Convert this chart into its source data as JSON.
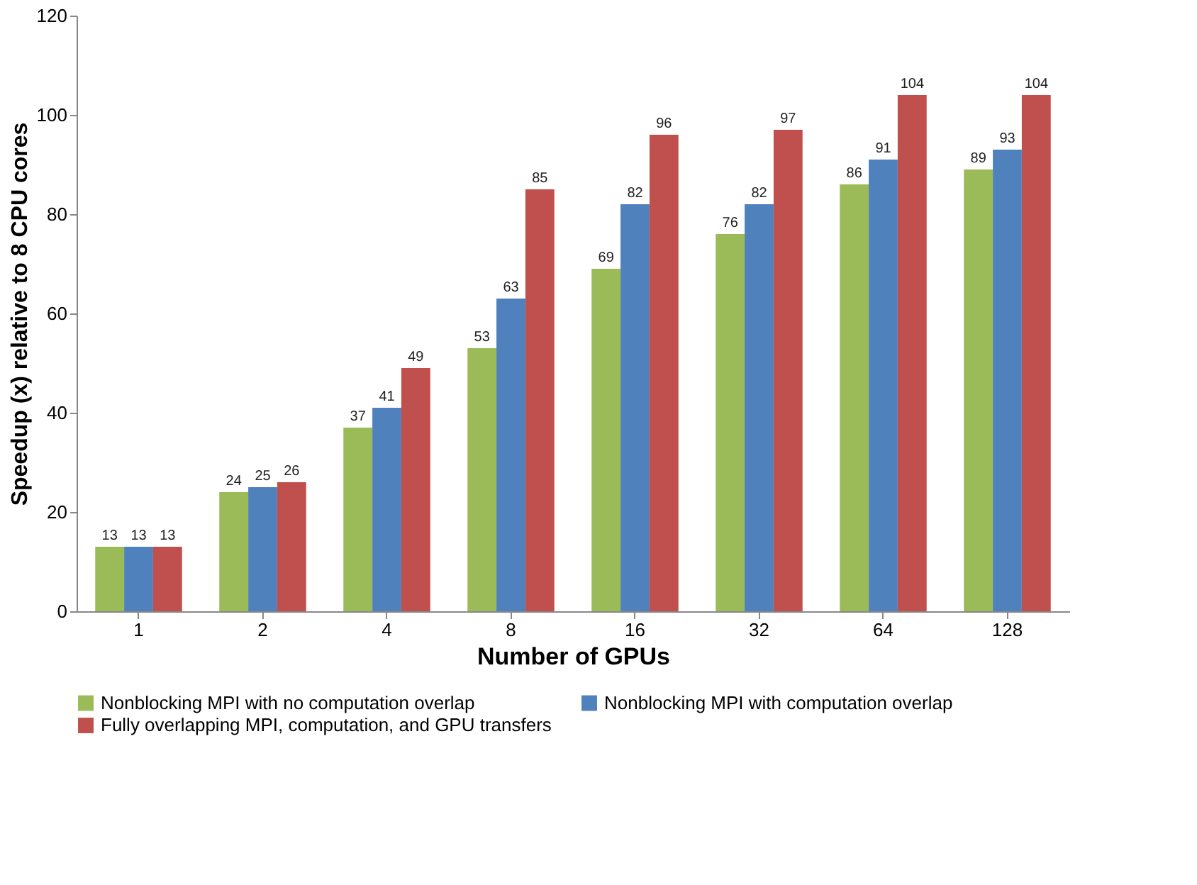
{
  "chart_data": {
    "type": "bar",
    "xlabel": "Number of GPUs",
    "ylabel": "Speedup (x) relative to 8 CPU cores",
    "categories": [
      "1",
      "2",
      "4",
      "8",
      "16",
      "32",
      "64",
      "128"
    ],
    "series": [
      {
        "name": "Nonblocking MPI with no computation overlap",
        "color": "#9bbb59",
        "values": [
          13,
          24,
          37,
          53,
          69,
          76,
          86,
          89
        ]
      },
      {
        "name": "Nonblocking MPI with computation overlap",
        "color": "#4f81bd",
        "values": [
          13,
          25,
          41,
          63,
          82,
          82,
          91,
          93
        ]
      },
      {
        "name": "Fully overlapping MPI, computation, and GPU transfers",
        "color": "#c0504d",
        "values": [
          13,
          26,
          49,
          85,
          96,
          97,
          104,
          104
        ]
      }
    ],
    "ylim": [
      0,
      120
    ],
    "yticks": [
      0,
      20,
      40,
      60,
      80,
      100,
      120
    ],
    "data_labels": true,
    "grid": false,
    "legend": "bottom"
  }
}
